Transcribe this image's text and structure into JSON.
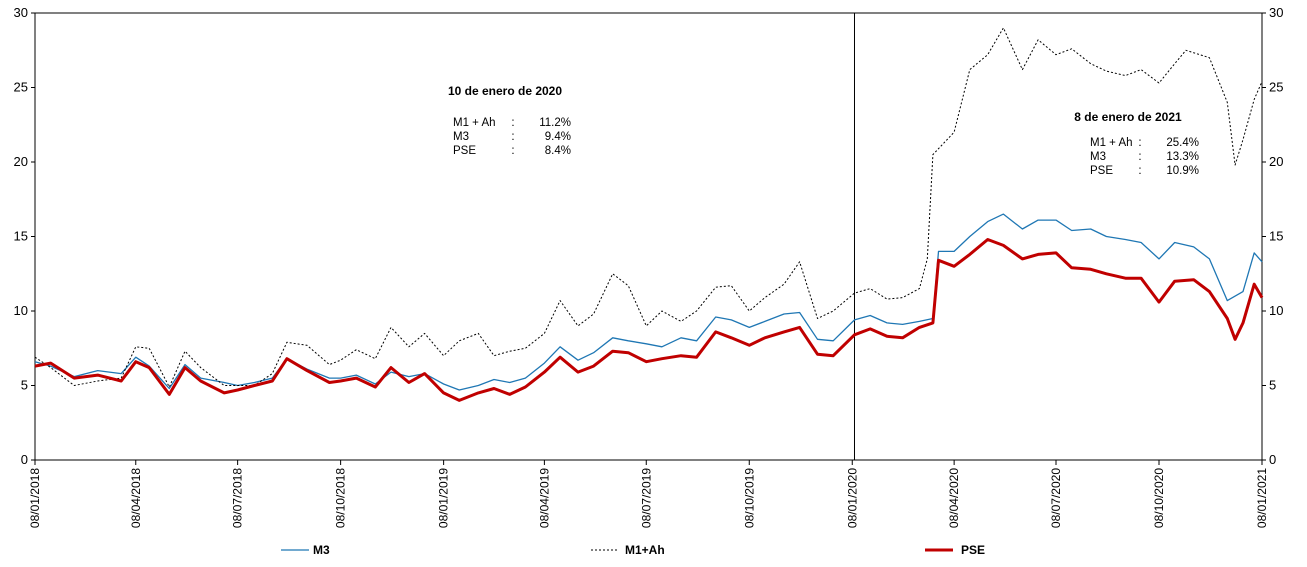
{
  "chart_data": {
    "type": "line",
    "ylim": [
      0,
      30
    ],
    "y_ticks": [
      "0",
      "5",
      "10",
      "15",
      "20",
      "25",
      "30"
    ],
    "x_tick_labels": [
      "08/01/2018",
      "08/04/2018",
      "08/07/2018",
      "08/10/2018",
      "08/01/2019",
      "08/04/2019",
      "08/07/2019",
      "08/10/2019",
      "08/01/2020",
      "08/04/2020",
      "08/07/2020",
      "08/10/2020",
      "08/01/2021"
    ],
    "x_start": "2018-01-08",
    "x_end": "2021-01-08",
    "vertical_marker": "2020-01-10",
    "series": [
      {
        "name": "M3",
        "color": "#1f77b4",
        "style": "solid",
        "points": [
          [
            "2018-01-08",
            6.6
          ],
          [
            "2018-01-22",
            6.3
          ],
          [
            "2018-02-12",
            5.6
          ],
          [
            "2018-03-05",
            6.0
          ],
          [
            "2018-03-26",
            5.8
          ],
          [
            "2018-04-08",
            6.9
          ],
          [
            "2018-04-20",
            6.3
          ],
          [
            "2018-05-08",
            4.8
          ],
          [
            "2018-05-22",
            6.4
          ],
          [
            "2018-06-05",
            5.5
          ],
          [
            "2018-06-26",
            5.2
          ],
          [
            "2018-07-08",
            5.0
          ],
          [
            "2018-07-23",
            5.2
          ],
          [
            "2018-08-08",
            5.5
          ],
          [
            "2018-08-21",
            6.8
          ],
          [
            "2018-09-08",
            6.1
          ],
          [
            "2018-09-28",
            5.5
          ],
          [
            "2018-10-08",
            5.5
          ],
          [
            "2018-10-22",
            5.7
          ],
          [
            "2018-11-08",
            5.1
          ],
          [
            "2018-11-22",
            5.9
          ],
          [
            "2018-12-08",
            5.6
          ],
          [
            "2018-12-22",
            5.8
          ],
          [
            "2019-01-08",
            5.1
          ],
          [
            "2019-01-22",
            4.7
          ],
          [
            "2019-02-08",
            5.0
          ],
          [
            "2019-02-22",
            5.4
          ],
          [
            "2019-03-08",
            5.2
          ],
          [
            "2019-03-22",
            5.5
          ],
          [
            "2019-04-08",
            6.5
          ],
          [
            "2019-04-22",
            7.6
          ],
          [
            "2019-05-08",
            6.7
          ],
          [
            "2019-05-22",
            7.2
          ],
          [
            "2019-06-08",
            8.2
          ],
          [
            "2019-06-22",
            8.0
          ],
          [
            "2019-07-08",
            7.8
          ],
          [
            "2019-07-22",
            7.6
          ],
          [
            "2019-08-08",
            8.2
          ],
          [
            "2019-08-22",
            8.0
          ],
          [
            "2019-09-08",
            9.6
          ],
          [
            "2019-09-22",
            9.4
          ],
          [
            "2019-10-08",
            8.9
          ],
          [
            "2019-10-22",
            9.3
          ],
          [
            "2019-11-08",
            9.8
          ],
          [
            "2019-11-22",
            9.9
          ],
          [
            "2019-12-08",
            8.1
          ],
          [
            "2019-12-22",
            8.0
          ],
          [
            "2020-01-10",
            9.4
          ],
          [
            "2020-01-24",
            9.7
          ],
          [
            "2020-02-08",
            9.2
          ],
          [
            "2020-02-22",
            9.1
          ],
          [
            "2020-03-08",
            9.3
          ],
          [
            "2020-03-20",
            9.5
          ],
          [
            "2020-03-25",
            14.0
          ],
          [
            "2020-04-08",
            14.0
          ],
          [
            "2020-04-22",
            15.0
          ],
          [
            "2020-05-08",
            16.0
          ],
          [
            "2020-05-22",
            16.5
          ],
          [
            "2020-06-08",
            15.5
          ],
          [
            "2020-06-22",
            16.1
          ],
          [
            "2020-07-08",
            16.1
          ],
          [
            "2020-07-22",
            15.4
          ],
          [
            "2020-08-08",
            15.5
          ],
          [
            "2020-08-22",
            15.0
          ],
          [
            "2020-09-08",
            14.8
          ],
          [
            "2020-09-22",
            14.6
          ],
          [
            "2020-10-08",
            13.5
          ],
          [
            "2020-10-22",
            14.6
          ],
          [
            "2020-11-08",
            14.3
          ],
          [
            "2020-11-22",
            13.5
          ],
          [
            "2020-12-08",
            10.7
          ],
          [
            "2020-12-22",
            11.3
          ],
          [
            "2021-01-01",
            13.9
          ],
          [
            "2021-01-08",
            13.3
          ]
        ]
      },
      {
        "name": "M1+Ah",
        "color": "#000000",
        "style": "dotted",
        "points": [
          [
            "2018-01-08",
            6.9
          ],
          [
            "2018-01-22",
            6.2
          ],
          [
            "2018-02-12",
            5.0
          ],
          [
            "2018-03-05",
            5.3
          ],
          [
            "2018-03-26",
            5.5
          ],
          [
            "2018-04-08",
            7.6
          ],
          [
            "2018-04-20",
            7.5
          ],
          [
            "2018-05-08",
            4.9
          ],
          [
            "2018-05-22",
            7.3
          ],
          [
            "2018-06-05",
            6.2
          ],
          [
            "2018-06-26",
            5.0
          ],
          [
            "2018-07-08",
            5.0
          ],
          [
            "2018-07-23",
            5.0
          ],
          [
            "2018-08-08",
            5.8
          ],
          [
            "2018-08-21",
            7.9
          ],
          [
            "2018-09-08",
            7.7
          ],
          [
            "2018-09-28",
            6.4
          ],
          [
            "2018-10-08",
            6.7
          ],
          [
            "2018-10-22",
            7.4
          ],
          [
            "2018-11-08",
            6.8
          ],
          [
            "2018-11-22",
            8.9
          ],
          [
            "2018-12-08",
            7.6
          ],
          [
            "2018-12-22",
            8.5
          ],
          [
            "2019-01-08",
            7.0
          ],
          [
            "2019-01-22",
            8.0
          ],
          [
            "2019-02-08",
            8.5
          ],
          [
            "2019-02-22",
            7.0
          ],
          [
            "2019-03-08",
            7.3
          ],
          [
            "2019-03-22",
            7.5
          ],
          [
            "2019-04-08",
            8.5
          ],
          [
            "2019-04-22",
            10.7
          ],
          [
            "2019-05-08",
            9.0
          ],
          [
            "2019-05-22",
            9.8
          ],
          [
            "2019-06-08",
            12.5
          ],
          [
            "2019-06-22",
            11.7
          ],
          [
            "2019-07-08",
            9.0
          ],
          [
            "2019-07-22",
            10.0
          ],
          [
            "2019-08-08",
            9.3
          ],
          [
            "2019-08-22",
            10.0
          ],
          [
            "2019-09-08",
            11.6
          ],
          [
            "2019-09-22",
            11.7
          ],
          [
            "2019-10-08",
            10.0
          ],
          [
            "2019-10-22",
            10.9
          ],
          [
            "2019-11-08",
            11.8
          ],
          [
            "2019-11-22",
            13.3
          ],
          [
            "2019-12-08",
            9.5
          ],
          [
            "2019-12-22",
            10.0
          ],
          [
            "2020-01-10",
            11.2
          ],
          [
            "2020-01-24",
            11.5
          ],
          [
            "2020-02-08",
            10.8
          ],
          [
            "2020-02-22",
            10.9
          ],
          [
            "2020-03-08",
            11.5
          ],
          [
            "2020-03-15",
            13.5
          ],
          [
            "2020-03-20",
            20.5
          ],
          [
            "2020-04-08",
            22.0
          ],
          [
            "2020-04-22",
            26.2
          ],
          [
            "2020-05-08",
            27.2
          ],
          [
            "2020-05-22",
            29.0
          ],
          [
            "2020-06-08",
            26.2
          ],
          [
            "2020-06-22",
            28.2
          ],
          [
            "2020-07-08",
            27.2
          ],
          [
            "2020-07-22",
            27.6
          ],
          [
            "2020-08-08",
            26.6
          ],
          [
            "2020-08-22",
            26.1
          ],
          [
            "2020-09-08",
            25.8
          ],
          [
            "2020-09-22",
            26.2
          ],
          [
            "2020-10-08",
            25.3
          ],
          [
            "2020-10-22",
            26.6
          ],
          [
            "2020-11-01",
            27.5
          ],
          [
            "2020-11-22",
            27.0
          ],
          [
            "2020-12-08",
            24.0
          ],
          [
            "2020-12-15",
            19.8
          ],
          [
            "2020-12-22",
            21.5
          ],
          [
            "2021-01-01",
            24.2
          ],
          [
            "2021-01-08",
            25.4
          ]
        ]
      },
      {
        "name": "PSE",
        "color": "#c00000",
        "style": "bold",
        "points": [
          [
            "2018-01-08",
            6.3
          ],
          [
            "2018-01-22",
            6.5
          ],
          [
            "2018-02-12",
            5.5
          ],
          [
            "2018-03-05",
            5.7
          ],
          [
            "2018-03-26",
            5.3
          ],
          [
            "2018-04-08",
            6.6
          ],
          [
            "2018-04-20",
            6.2
          ],
          [
            "2018-05-08",
            4.4
          ],
          [
            "2018-05-22",
            6.2
          ],
          [
            "2018-06-05",
            5.3
          ],
          [
            "2018-06-26",
            4.5
          ],
          [
            "2018-07-08",
            4.7
          ],
          [
            "2018-07-23",
            5.0
          ],
          [
            "2018-08-08",
            5.3
          ],
          [
            "2018-08-21",
            6.8
          ],
          [
            "2018-09-08",
            6.0
          ],
          [
            "2018-09-28",
            5.2
          ],
          [
            "2018-10-08",
            5.3
          ],
          [
            "2018-10-22",
            5.5
          ],
          [
            "2018-11-08",
            4.9
          ],
          [
            "2018-11-22",
            6.2
          ],
          [
            "2018-12-08",
            5.2
          ],
          [
            "2018-12-22",
            5.8
          ],
          [
            "2019-01-08",
            4.5
          ],
          [
            "2019-01-22",
            4.0
          ],
          [
            "2019-02-08",
            4.5
          ],
          [
            "2019-02-22",
            4.8
          ],
          [
            "2019-03-08",
            4.4
          ],
          [
            "2019-03-22",
            4.9
          ],
          [
            "2019-04-08",
            5.9
          ],
          [
            "2019-04-22",
            6.9
          ],
          [
            "2019-05-08",
            5.9
          ],
          [
            "2019-05-22",
            6.3
          ],
          [
            "2019-06-08",
            7.3
          ],
          [
            "2019-06-22",
            7.2
          ],
          [
            "2019-07-08",
            6.6
          ],
          [
            "2019-07-22",
            6.8
          ],
          [
            "2019-08-08",
            7.0
          ],
          [
            "2019-08-22",
            6.9
          ],
          [
            "2019-09-08",
            8.6
          ],
          [
            "2019-09-22",
            8.2
          ],
          [
            "2019-10-08",
            7.7
          ],
          [
            "2019-10-22",
            8.2
          ],
          [
            "2019-11-08",
            8.6
          ],
          [
            "2019-11-22",
            8.9
          ],
          [
            "2019-12-08",
            7.1
          ],
          [
            "2019-12-22",
            7.0
          ],
          [
            "2020-01-10",
            8.4
          ],
          [
            "2020-01-24",
            8.8
          ],
          [
            "2020-02-08",
            8.3
          ],
          [
            "2020-02-22",
            8.2
          ],
          [
            "2020-03-08",
            8.9
          ],
          [
            "2020-03-20",
            9.2
          ],
          [
            "2020-03-25",
            13.4
          ],
          [
            "2020-04-08",
            13.0
          ],
          [
            "2020-04-22",
            13.8
          ],
          [
            "2020-05-08",
            14.8
          ],
          [
            "2020-05-22",
            14.4
          ],
          [
            "2020-06-08",
            13.5
          ],
          [
            "2020-06-22",
            13.8
          ],
          [
            "2020-07-08",
            13.9
          ],
          [
            "2020-07-22",
            12.9
          ],
          [
            "2020-08-08",
            12.8
          ],
          [
            "2020-08-22",
            12.5
          ],
          [
            "2020-09-08",
            12.2
          ],
          [
            "2020-09-22",
            12.2
          ],
          [
            "2020-10-08",
            10.6
          ],
          [
            "2020-10-22",
            12.0
          ],
          [
            "2020-11-08",
            12.1
          ],
          [
            "2020-11-22",
            11.3
          ],
          [
            "2020-12-08",
            9.5
          ],
          [
            "2020-12-15",
            8.1
          ],
          [
            "2020-12-22",
            9.2
          ],
          [
            "2021-01-01",
            11.8
          ],
          [
            "2021-01-08",
            10.9
          ]
        ]
      }
    ],
    "annotations": [
      {
        "title": "10 de enero de 2020",
        "rows": [
          {
            "label": "M1 + Ah",
            "sep": ":",
            "value": "11.2%"
          },
          {
            "label": "M3",
            "sep": ":",
            "value": "9.4%"
          },
          {
            "label": "PSE",
            "sep": ":",
            "value": "8.4%"
          }
        ]
      },
      {
        "title": "8 de enero de 2021",
        "rows": [
          {
            "label": "M1 + Ah",
            "sep": ":",
            "value": "25.4%"
          },
          {
            "label": "M3",
            "sep": ":",
            "value": "13.3%"
          },
          {
            "label": "PSE",
            "sep": ":",
            "value": "10.9%"
          }
        ]
      }
    ],
    "legend": [
      {
        "label": "M3",
        "color": "#1f77b4",
        "style": "solid"
      },
      {
        "label": "M1+Ah",
        "color": "#000000",
        "style": "dotted"
      },
      {
        "label": "PSE",
        "color": "#c00000",
        "style": "bold"
      }
    ]
  }
}
